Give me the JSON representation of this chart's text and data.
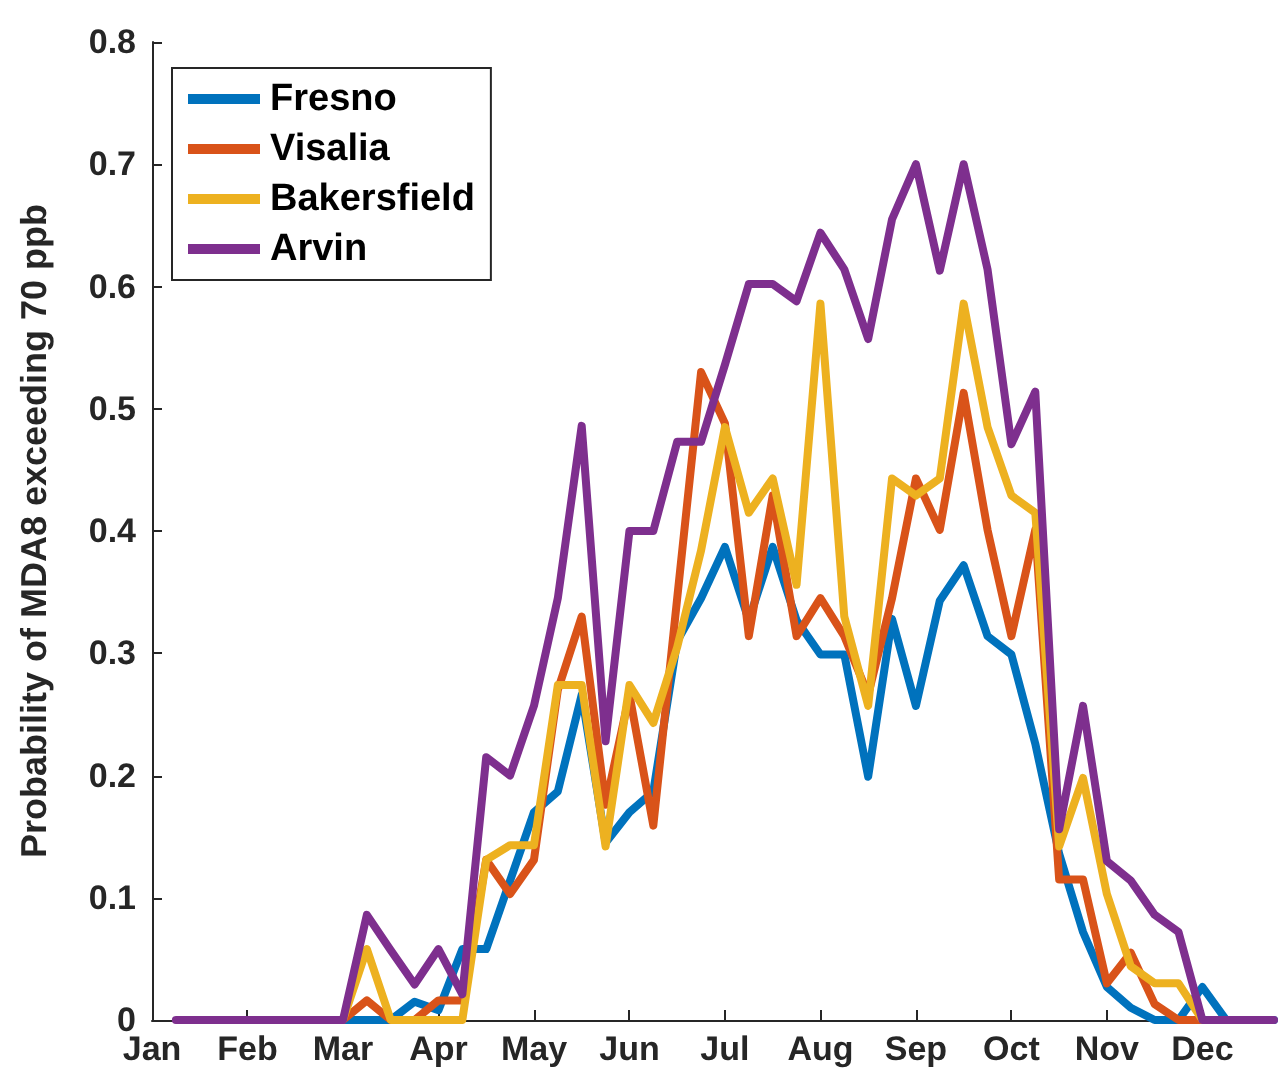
{
  "chart_data": {
    "type": "line",
    "ylabel": "Probability of MDA8 exceeding 70 ppb",
    "categories": [
      "Jan",
      null,
      null,
      null,
      "Feb",
      null,
      null,
      null,
      "Mar",
      null,
      null,
      null,
      "Apr",
      null,
      null,
      null,
      "May",
      null,
      null,
      null,
      "Jun",
      null,
      null,
      null,
      "Jul",
      null,
      null,
      null,
      "Aug",
      null,
      null,
      null,
      "Sep",
      null,
      null,
      null,
      "Oct",
      null,
      null,
      null,
      "Nov",
      null,
      null,
      null,
      "Dec",
      null,
      null,
      null
    ],
    "series": [
      {
        "name": "Fresno",
        "color": "#0072bd",
        "values": [
          null,
          null,
          null,
          null,
          null,
          null,
          null,
          0,
          0,
          0,
          0,
          0.015,
          0.008,
          0.058,
          0.058,
          0.114,
          0.17,
          0.187,
          0.266,
          0.145,
          0.17,
          0.187,
          0.31,
          0.345,
          0.387,
          0.327,
          0.387,
          0.327,
          0.299,
          0.299,
          0.199,
          0.328,
          0.257,
          0.343,
          0.372,
          0.314,
          0.299,
          0.226,
          0.136,
          0.072,
          0.027,
          0.01,
          0,
          0,
          0.027,
          0,
          0,
          0
        ]
      },
      {
        "name": "Visalia",
        "color": "#d95319",
        "values": [
          null,
          null,
          null,
          null,
          null,
          null,
          null,
          0,
          0,
          0.016,
          0,
          0,
          0.016,
          0.016,
          0.131,
          0.103,
          0.131,
          0.27,
          0.33,
          0.176,
          0.266,
          0.159,
          0.345,
          0.53,
          0.488,
          0.314,
          0.429,
          0.314,
          0.345,
          0.314,
          0.266,
          0.345,
          0.443,
          0.401,
          0.513,
          0.401,
          0.314,
          0.401,
          0.115,
          0.115,
          0.03,
          0.055,
          0.013,
          0,
          0,
          0,
          null,
          null
        ]
      },
      {
        "name": "Bakersfield",
        "color": "#edb120",
        "values": [
          null,
          null,
          null,
          null,
          null,
          null,
          null,
          0,
          0,
          0.058,
          0,
          0,
          0,
          0,
          0.131,
          0.143,
          0.143,
          0.274,
          0.274,
          0.142,
          0.274,
          0.243,
          0.305,
          0.384,
          0.485,
          0.415,
          0.443,
          0.356,
          0.586,
          0.33,
          0.257,
          0.443,
          0.429,
          0.443,
          0.586,
          0.485,
          0.429,
          0.415,
          0.142,
          0.198,
          0.103,
          0.044,
          0.03,
          0.03,
          0,
          0,
          null,
          null
        ]
      },
      {
        "name": "Arvin",
        "color": "#7e2f8e",
        "values": [
          null,
          0,
          0,
          0,
          0,
          0,
          0,
          0,
          0,
          0.086,
          0.057,
          0.029,
          0.058,
          0.021,
          0.215,
          0.2,
          0.257,
          0.345,
          0.486,
          0.228,
          0.4,
          0.4,
          0.473,
          0.473,
          0.536,
          0.602,
          0.602,
          0.588,
          0.644,
          0.614,
          0.557,
          0.655,
          0.7,
          0.613,
          0.7,
          0.614,
          0.471,
          0.514,
          0.156,
          0.257,
          0.13,
          0.114,
          0.086,
          0.072,
          0,
          0,
          0,
          0
        ]
      }
    ],
    "ylim": [
      0,
      0.8
    ],
    "yticks": [
      0,
      0.1,
      0.2,
      0.3,
      0.4,
      0.5,
      0.6,
      0.7,
      0.8
    ],
    "grid": false,
    "legend": "top left",
    "marker": "none",
    "line_style": "solid"
  }
}
